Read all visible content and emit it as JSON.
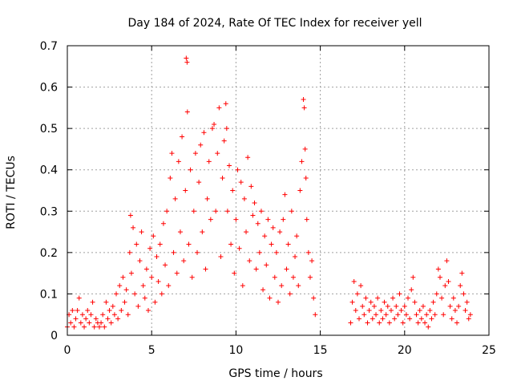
{
  "chart_data": {
    "type": "scatter",
    "title": "Day 184 of 2024, Rate Of TEC Index for receiver yell",
    "xlabel": "GPS time / hours",
    "ylabel": "ROTI / TECUs",
    "xlim": [
      0,
      25
    ],
    "ylim": [
      0,
      0.7
    ],
    "xticks": [
      0,
      5,
      10,
      15,
      20,
      25
    ],
    "xtick_labels": [
      "0",
      "5",
      "10",
      "15",
      "20",
      "25"
    ],
    "yticks": [
      0,
      0.1,
      0.2,
      0.3,
      0.4,
      0.5,
      0.6,
      0.7
    ],
    "ytick_labels": [
      "0",
      "0.1",
      "0.2",
      "0.3",
      "0.4",
      "0.5",
      "0.6",
      "0.7"
    ],
    "grid": true,
    "marker": "+",
    "color": "#ff0000",
    "series": [
      {
        "name": "ROTI",
        "points": [
          [
            0.0,
            0.02
          ],
          [
            0.1,
            0.05
          ],
          [
            0.2,
            0.03
          ],
          [
            0.3,
            0.06
          ],
          [
            0.4,
            0.02
          ],
          [
            0.5,
            0.04
          ],
          [
            0.6,
            0.06
          ],
          [
            0.7,
            0.09
          ],
          [
            0.8,
            0.03
          ],
          [
            0.9,
            0.05
          ],
          [
            1.0,
            0.02
          ],
          [
            1.1,
            0.04
          ],
          [
            1.2,
            0.06
          ],
          [
            1.3,
            0.03
          ],
          [
            1.4,
            0.05
          ],
          [
            1.5,
            0.08
          ],
          [
            1.6,
            0.02
          ],
          [
            1.7,
            0.04
          ],
          [
            1.8,
            0.03
          ],
          [
            1.9,
            0.02
          ],
          [
            2.0,
            0.03
          ],
          [
            2.1,
            0.05
          ],
          [
            2.2,
            0.02
          ],
          [
            2.3,
            0.08
          ],
          [
            2.4,
            0.04
          ],
          [
            2.5,
            0.06
          ],
          [
            2.6,
            0.03
          ],
          [
            2.7,
            0.07
          ],
          [
            2.8,
            0.05
          ],
          [
            2.9,
            0.1
          ],
          [
            3.0,
            0.04
          ],
          [
            3.1,
            0.12
          ],
          [
            3.2,
            0.06
          ],
          [
            3.3,
            0.14
          ],
          [
            3.4,
            0.08
          ],
          [
            3.5,
            0.11
          ],
          [
            3.6,
            0.05
          ],
          [
            3.7,
            0.2
          ],
          [
            3.75,
            0.29
          ],
          [
            3.8,
            0.15
          ],
          [
            3.9,
            0.26
          ],
          [
            4.0,
            0.1
          ],
          [
            4.1,
            0.22
          ],
          [
            4.2,
            0.07
          ],
          [
            4.3,
            0.18
          ],
          [
            4.4,
            0.25
          ],
          [
            4.5,
            0.12
          ],
          [
            4.6,
            0.09
          ],
          [
            4.7,
            0.16
          ],
          [
            4.8,
            0.06
          ],
          [
            4.9,
            0.21
          ],
          [
            5.0,
            0.14
          ],
          [
            5.1,
            0.24
          ],
          [
            5.2,
            0.08
          ],
          [
            5.3,
            0.19
          ],
          [
            5.4,
            0.13
          ],
          [
            5.5,
            0.22
          ],
          [
            5.6,
            0.1
          ],
          [
            5.7,
            0.27
          ],
          [
            5.8,
            0.17
          ],
          [
            5.9,
            0.3
          ],
          [
            6.0,
            0.12
          ],
          [
            6.1,
            0.38
          ],
          [
            6.2,
            0.44
          ],
          [
            6.3,
            0.2
          ],
          [
            6.4,
            0.33
          ],
          [
            6.5,
            0.15
          ],
          [
            6.6,
            0.42
          ],
          [
            6.7,
            0.25
          ],
          [
            6.8,
            0.48
          ],
          [
            6.9,
            0.18
          ],
          [
            7.0,
            0.35
          ],
          [
            7.05,
            0.67
          ],
          [
            7.1,
            0.66
          ],
          [
            7.12,
            0.54
          ],
          [
            7.2,
            0.22
          ],
          [
            7.3,
            0.4
          ],
          [
            7.4,
            0.14
          ],
          [
            7.5,
            0.3
          ],
          [
            7.6,
            0.44
          ],
          [
            7.7,
            0.2
          ],
          [
            7.8,
            0.37
          ],
          [
            7.9,
            0.46
          ],
          [
            8.0,
            0.25
          ],
          [
            8.1,
            0.49
          ],
          [
            8.2,
            0.16
          ],
          [
            8.3,
            0.33
          ],
          [
            8.4,
            0.42
          ],
          [
            8.5,
            0.28
          ],
          [
            8.6,
            0.5
          ],
          [
            8.7,
            0.51
          ],
          [
            8.8,
            0.3
          ],
          [
            8.9,
            0.44
          ],
          [
            9.0,
            0.55
          ],
          [
            9.1,
            0.19
          ],
          [
            9.2,
            0.38
          ],
          [
            9.3,
            0.47
          ],
          [
            9.4,
            0.56
          ],
          [
            9.45,
            0.5
          ],
          [
            9.5,
            0.3
          ],
          [
            9.6,
            0.41
          ],
          [
            9.7,
            0.22
          ],
          [
            9.8,
            0.35
          ],
          [
            9.9,
            0.15
          ],
          [
            10.0,
            0.28
          ],
          [
            10.1,
            0.4
          ],
          [
            10.2,
            0.21
          ],
          [
            10.3,
            0.37
          ],
          [
            10.4,
            0.12
          ],
          [
            10.5,
            0.33
          ],
          [
            10.6,
            0.25
          ],
          [
            10.7,
            0.43
          ],
          [
            10.8,
            0.18
          ],
          [
            10.9,
            0.36
          ],
          [
            11.0,
            0.29
          ],
          [
            11.1,
            0.32
          ],
          [
            11.2,
            0.16
          ],
          [
            11.3,
            0.27
          ],
          [
            11.4,
            0.2
          ],
          [
            11.5,
            0.3
          ],
          [
            11.6,
            0.11
          ],
          [
            11.7,
            0.24
          ],
          [
            11.8,
            0.17
          ],
          [
            11.9,
            0.28
          ],
          [
            12.0,
            0.09
          ],
          [
            12.1,
            0.22
          ],
          [
            12.2,
            0.26
          ],
          [
            12.3,
            0.14
          ],
          [
            12.4,
            0.2
          ],
          [
            12.5,
            0.08
          ],
          [
            12.6,
            0.25
          ],
          [
            12.7,
            0.12
          ],
          [
            12.8,
            0.28
          ],
          [
            12.9,
            0.34
          ],
          [
            13.0,
            0.16
          ],
          [
            13.1,
            0.22
          ],
          [
            13.2,
            0.1
          ],
          [
            13.3,
            0.3
          ],
          [
            13.4,
            0.14
          ],
          [
            13.5,
            0.19
          ],
          [
            13.6,
            0.24
          ],
          [
            13.7,
            0.12
          ],
          [
            13.8,
            0.35
          ],
          [
            13.9,
            0.42
          ],
          [
            14.0,
            0.57
          ],
          [
            14.05,
            0.55
          ],
          [
            14.1,
            0.45
          ],
          [
            14.15,
            0.38
          ],
          [
            14.2,
            0.28
          ],
          [
            14.3,
            0.2
          ],
          [
            14.4,
            0.14
          ],
          [
            14.5,
            0.18
          ],
          [
            14.6,
            0.09
          ],
          [
            14.7,
            0.05
          ],
          [
            16.8,
            0.03
          ],
          [
            16.9,
            0.08
          ],
          [
            17.0,
            0.13
          ],
          [
            17.1,
            0.06
          ],
          [
            17.2,
            0.1
          ],
          [
            17.3,
            0.04
          ],
          [
            17.4,
            0.12
          ],
          [
            17.5,
            0.07
          ],
          [
            17.6,
            0.05
          ],
          [
            17.7,
            0.09
          ],
          [
            17.8,
            0.03
          ],
          [
            17.9,
            0.06
          ],
          [
            18.0,
            0.08
          ],
          [
            18.1,
            0.04
          ],
          [
            18.2,
            0.07
          ],
          [
            18.3,
            0.05
          ],
          [
            18.4,
            0.09
          ],
          [
            18.5,
            0.03
          ],
          [
            18.6,
            0.06
          ],
          [
            18.7,
            0.04
          ],
          [
            18.8,
            0.08
          ],
          [
            18.9,
            0.05
          ],
          [
            19.0,
            0.07
          ],
          [
            19.1,
            0.03
          ],
          [
            19.2,
            0.06
          ],
          [
            19.3,
            0.09
          ],
          [
            19.4,
            0.04
          ],
          [
            19.5,
            0.07
          ],
          [
            19.6,
            0.05
          ],
          [
            19.7,
            0.1
          ],
          [
            19.8,
            0.06
          ],
          [
            19.9,
            0.03
          ],
          [
            20.0,
            0.07
          ],
          [
            20.1,
            0.05
          ],
          [
            20.2,
            0.09
          ],
          [
            20.3,
            0.04
          ],
          [
            20.4,
            0.11
          ],
          [
            20.5,
            0.14
          ],
          [
            20.6,
            0.08
          ],
          [
            20.7,
            0.05
          ],
          [
            20.8,
            0.03
          ],
          [
            20.9,
            0.06
          ],
          [
            21.0,
            0.04
          ],
          [
            21.1,
            0.07
          ],
          [
            21.2,
            0.03
          ],
          [
            21.3,
            0.05
          ],
          [
            21.4,
            0.02
          ],
          [
            21.5,
            0.06
          ],
          [
            21.6,
            0.04
          ],
          [
            21.7,
            0.08
          ],
          [
            21.8,
            0.05
          ],
          [
            21.9,
            0.1
          ],
          [
            22.0,
            0.16
          ],
          [
            22.1,
            0.14
          ],
          [
            22.2,
            0.09
          ],
          [
            22.3,
            0.05
          ],
          [
            22.4,
            0.12
          ],
          [
            22.5,
            0.18
          ],
          [
            22.6,
            0.13
          ],
          [
            22.7,
            0.07
          ],
          [
            22.8,
            0.04
          ],
          [
            22.9,
            0.09
          ],
          [
            23.0,
            0.06
          ],
          [
            23.1,
            0.03
          ],
          [
            23.2,
            0.07
          ],
          [
            23.3,
            0.12
          ],
          [
            23.4,
            0.15
          ],
          [
            23.5,
            0.1
          ],
          [
            23.6,
            0.06
          ],
          [
            23.7,
            0.08
          ],
          [
            23.8,
            0.04
          ],
          [
            23.9,
            0.05
          ]
        ]
      }
    ]
  }
}
